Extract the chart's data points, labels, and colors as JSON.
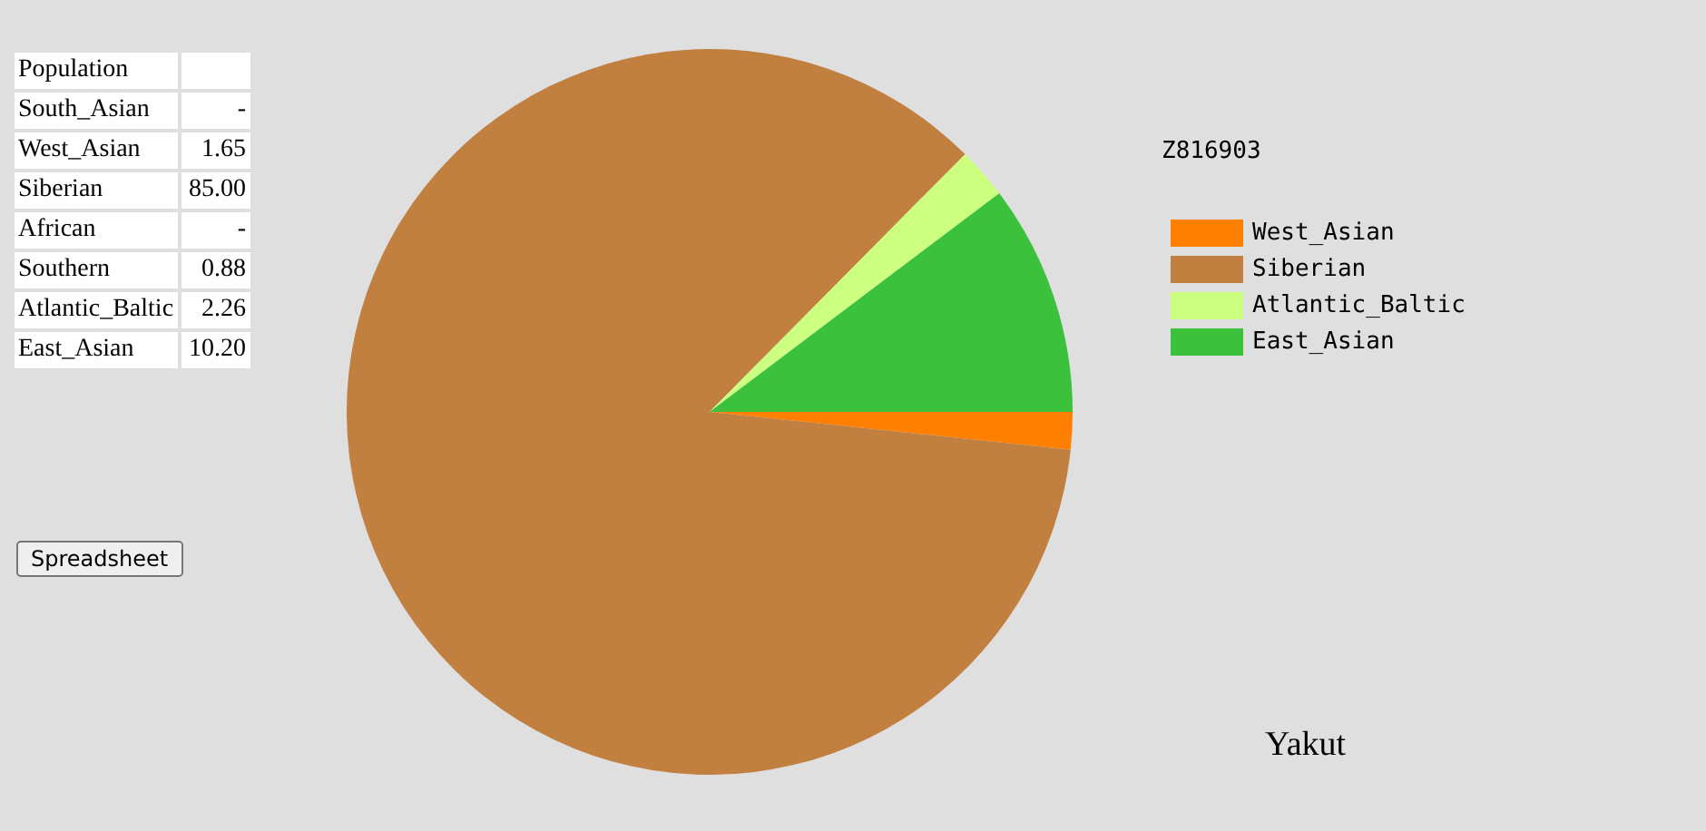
{
  "chart_data": {
    "type": "pie",
    "title": "Z816903",
    "subtitle": "Yakut",
    "categories": [
      "West_Asian",
      "Siberian",
      "Atlantic_Baltic",
      "East_Asian"
    ],
    "values": [
      1.65,
      85.0,
      2.26,
      10.2
    ],
    "colors": [
      "#ff8000",
      "#c17f40",
      "#ccff80",
      "#3cc13c"
    ],
    "legend": "top right",
    "annotations": [
      "Population",
      "South_Asian",
      "-",
      "West_Asian",
      "1.65",
      "Siberian",
      "85.00",
      "African",
      "-",
      "Southern",
      "0.88",
      "Atlantic_Baltic",
      "2.26",
      "East_Asian",
      "10.20",
      "Spreadsheet"
    ]
  }
}
